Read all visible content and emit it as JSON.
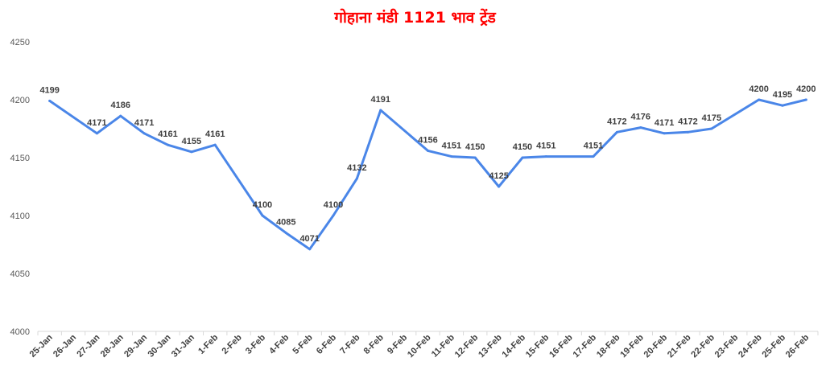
{
  "chart_data": {
    "type": "line",
    "title": "गोहाना मंडी 1121 भाव ट्रेंड",
    "xlabel": "",
    "ylabel": "",
    "ylim": [
      4000,
      4250
    ],
    "yticks": [
      4000,
      4050,
      4100,
      4150,
      4200,
      4250
    ],
    "grid": false,
    "legend": "none",
    "line_color": "#4a86e8",
    "title_color": "#ff0000",
    "categories": [
      "25-Jan",
      "26-Jan",
      "27-Jan",
      "28-Jan",
      "29-Jan",
      "30-Jan",
      "31-Jan",
      "1-Feb",
      "2-Feb",
      "3-Feb",
      "4-Feb",
      "5-Feb",
      "6-Feb",
      "7-Feb",
      "8-Feb",
      "9-Feb",
      "10-Feb",
      "11-Feb",
      "12-Feb",
      "13-Feb",
      "14-Feb",
      "15-Feb",
      "16-Feb",
      "17-Feb",
      "18-Feb",
      "19-Feb",
      "20-Feb",
      "21-Feb",
      "22-Feb",
      "23-Feb",
      "24-Feb",
      "25-Feb",
      "26-Feb"
    ],
    "points": [
      {
        "x": "25-Jan",
        "y": 4199
      },
      {
        "x": "27-Jan",
        "y": 4171
      },
      {
        "x": "28-Jan",
        "y": 4186
      },
      {
        "x": "29-Jan",
        "y": 4171
      },
      {
        "x": "30-Jan",
        "y": 4161
      },
      {
        "x": "31-Jan",
        "y": 4155
      },
      {
        "x": "1-Feb",
        "y": 4161
      },
      {
        "x": "3-Feb",
        "y": 4100
      },
      {
        "x": "4-Feb",
        "y": 4085
      },
      {
        "x": "5-Feb",
        "y": 4071
      },
      {
        "x": "6-Feb",
        "y": 4100
      },
      {
        "x": "7-Feb",
        "y": 4132
      },
      {
        "x": "8-Feb",
        "y": 4191
      },
      {
        "x": "10-Feb",
        "y": 4156
      },
      {
        "x": "11-Feb",
        "y": 4151
      },
      {
        "x": "12-Feb",
        "y": 4150
      },
      {
        "x": "13-Feb",
        "y": 4125
      },
      {
        "x": "14-Feb",
        "y": 4150
      },
      {
        "x": "15-Feb",
        "y": 4151
      },
      {
        "x": "17-Feb",
        "y": 4151
      },
      {
        "x": "18-Feb",
        "y": 4172
      },
      {
        "x": "19-Feb",
        "y": 4176
      },
      {
        "x": "20-Feb",
        "y": 4171
      },
      {
        "x": "21-Feb",
        "y": 4172
      },
      {
        "x": "22-Feb",
        "y": 4175
      },
      {
        "x": "24-Feb",
        "y": 4200
      },
      {
        "x": "25-Feb",
        "y": 4195
      },
      {
        "x": "26-Feb",
        "y": 4200
      }
    ]
  }
}
